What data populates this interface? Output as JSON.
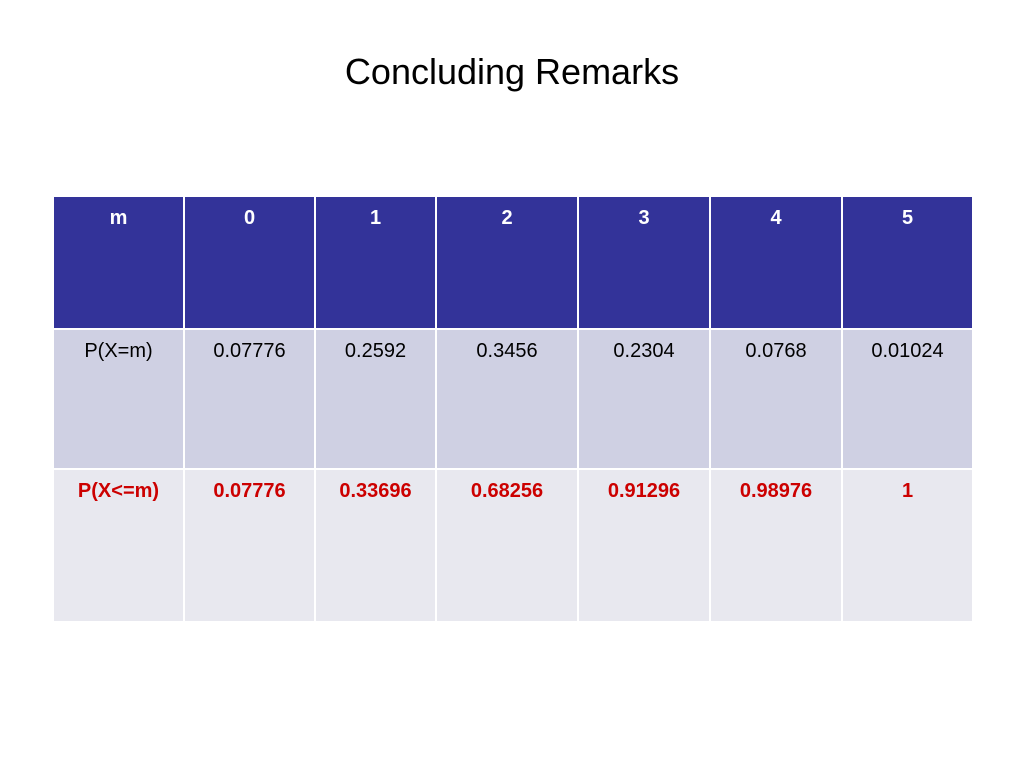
{
  "slide": {
    "title": "Concluding Remarks"
  },
  "table": {
    "header": [
      "m",
      "0",
      "1",
      "2",
      "3",
      "4",
      "5"
    ],
    "rows": [
      {
        "label": "P(X=m)",
        "values": [
          "0.07776",
          "0.2592",
          "0.3456",
          "0.2304",
          "0.0768",
          "0.01024"
        ]
      },
      {
        "label": "P(X<=m)",
        "values": [
          "0.07776",
          "0.33696",
          "0.68256",
          "0.91296",
          "0.98976",
          "1"
        ]
      }
    ]
  },
  "colors": {
    "header_bg": "#333399",
    "header_text": "#ffffff",
    "row1_bg": "#cfd0e3",
    "row2_bg": "#e8e8ef",
    "row2_text": "#cc0000"
  }
}
